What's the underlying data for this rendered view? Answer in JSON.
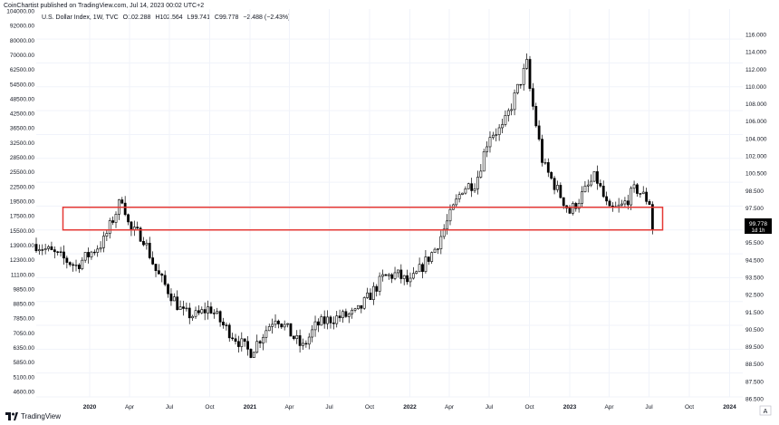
{
  "header": {
    "publisher_line": "CoinChartist published on TradingView.com, Jul 14, 2023 00:02 UTC+2"
  },
  "symbol": {
    "name": "U.S. Dollar Index, 1W, TVC",
    "open": "O102.288",
    "high": "H102.564",
    "low": "L99.741",
    "close": "C99.778",
    "change": "−2.488 (−2.43%)"
  },
  "price_tag": {
    "price": "99.778",
    "countdown": "1d 1h"
  },
  "footer": {
    "brand": "TradingView"
  },
  "colors": {
    "up_body": "#ffffff",
    "down_body": "#000000",
    "wick": "#000000",
    "zone": "#e53935",
    "price_tag_bg": "#000000"
  },
  "chart_data": {
    "type": "candlestick",
    "title": "",
    "ylabel_left": "",
    "ylabel_right": "",
    "x_tick_labels": [
      "2020",
      "Apr",
      "Jul",
      "Oct",
      "2021",
      "Apr",
      "Jul",
      "Oct",
      "2022",
      "Apr",
      "Jul",
      "Oct",
      "2023",
      "Apr",
      "Jul",
      "Oct",
      "2024"
    ],
    "left_axis_ticks": [
      "104000.00",
      "92000.00",
      "80000.00",
      "70000.00",
      "62500.00",
      "54500.00",
      "48500.00",
      "42500.00",
      "36500.00",
      "32500.00",
      "28500.00",
      "25500.00",
      "22500.00",
      "19500.00",
      "17500.00",
      "15500.00",
      "13900.00",
      "12300.00",
      "11100.00",
      "9850.00",
      "8850.00",
      "7850.00",
      "7050.00",
      "6350.00",
      "5850.00",
      "5100.00",
      "4600.00"
    ],
    "right_axis_ticks": [
      "116.000",
      "114.000",
      "112.000",
      "110.000",
      "108.000",
      "106.000",
      "104.000",
      "102.000",
      "100.500",
      "98.500",
      "97.500",
      "96.500",
      "95.500",
      "94.500",
      "93.500",
      "92.500",
      "91.500",
      "90.500",
      "89.500",
      "88.500",
      "87.500",
      "86.500"
    ],
    "y_range": [
      86.0,
      117.0
    ],
    "zone": {
      "low": 100.0,
      "high": 101.9,
      "start": "2019-11",
      "end": "2023-08"
    },
    "anchors": [
      {
        "t": "2019-09",
        "v": 98.8
      },
      {
        "t": "2019-12",
        "v": 97.0
      },
      {
        "t": "2020-02",
        "v": 99.0
      },
      {
        "t": "2020-03-16",
        "v": 102.8
      },
      {
        "t": "2020-04",
        "v": 100.0
      },
      {
        "t": "2020-05",
        "v": 99.5
      },
      {
        "t": "2020-06",
        "v": 96.5
      },
      {
        "t": "2020-08",
        "v": 93.0
      },
      {
        "t": "2020-09",
        "v": 92.8
      },
      {
        "t": "2020-10",
        "v": 93.5
      },
      {
        "t": "2020-11",
        "v": 92.0
      },
      {
        "t": "2021-01",
        "v": 89.7
      },
      {
        "t": "2021-03",
        "v": 92.8
      },
      {
        "t": "2021-05",
        "v": 90.1
      },
      {
        "t": "2021-06",
        "v": 92.0
      },
      {
        "t": "2021-07",
        "v": 92.5
      },
      {
        "t": "2021-09",
        "v": 93.0
      },
      {
        "t": "2021-11",
        "v": 96.0
      },
      {
        "t": "2021-12",
        "v": 96.3
      },
      {
        "t": "2022-01",
        "v": 95.5
      },
      {
        "t": "2022-03",
        "v": 98.5
      },
      {
        "t": "2022-05",
        "v": 103.5
      },
      {
        "t": "2022-06",
        "v": 104.0
      },
      {
        "t": "2022-07",
        "v": 108.0
      },
      {
        "t": "2022-08",
        "v": 108.5
      },
      {
        "t": "2022-09-26",
        "v": 114.0
      },
      {
        "t": "2022-10",
        "v": 112.0
      },
      {
        "t": "2022-11",
        "v": 105.5
      },
      {
        "t": "2023-01",
        "v": 101.5
      },
      {
        "t": "2023-03",
        "v": 104.5
      },
      {
        "t": "2023-04",
        "v": 101.5
      },
      {
        "t": "2023-05",
        "v": 102.0
      },
      {
        "t": "2023-06",
        "v": 103.5
      },
      {
        "t": "2023-07-03",
        "v": 102.3
      },
      {
        "t": "2023-07-10",
        "v": 99.8
      }
    ]
  }
}
